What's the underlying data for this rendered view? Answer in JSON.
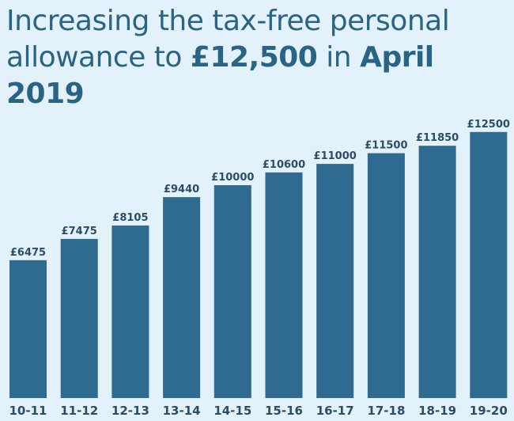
{
  "title": {
    "line1": "Increasing the tax-free personal",
    "line2_pre": "allowance to ",
    "line2_amount": "£12,500",
    "line2_mid": " in ",
    "line2_date": "April 2019"
  },
  "colors": {
    "background": "#e2f1fa",
    "bar": "#2f6a90",
    "title_text": "#2a6485",
    "label_text": "#2b4d66"
  },
  "chart_data": {
    "type": "bar",
    "title": "Increasing the tax-free personal allowance to £12,500 in April 2019",
    "xlabel": "",
    "ylabel": "",
    "categories": [
      "10-11",
      "11-12",
      "12-13",
      "13-14",
      "14-15",
      "15-16",
      "16-17",
      "17-18",
      "18-19",
      "19-20"
    ],
    "values": [
      6475,
      7475,
      8105,
      9440,
      10000,
      10600,
      11000,
      11500,
      11850,
      12500
    ],
    "value_labels": [
      "£6475",
      "£7475",
      "£8105",
      "£9440",
      "£10000",
      "£10600",
      "£11000",
      "£11500",
      "£11850",
      "£12500"
    ],
    "grid": false,
    "legend": "none"
  }
}
